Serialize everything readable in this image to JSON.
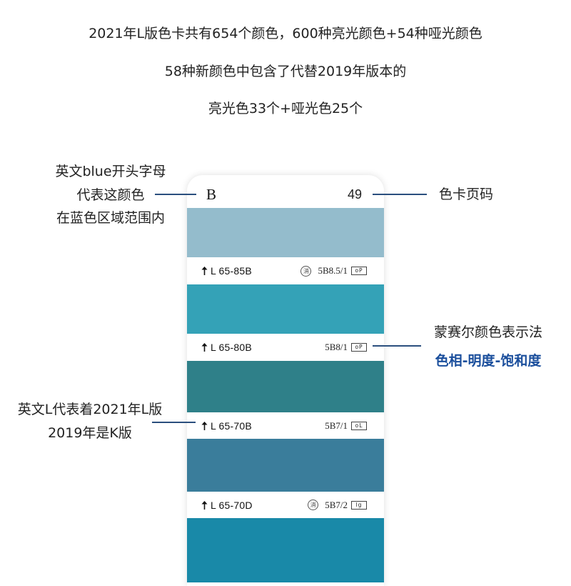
{
  "intro": {
    "line1": "2021年L版色卡共有654个颜色，600种亮光颜色+54种哑光颜色",
    "line2": "58种新颜色中包含了代替2019年版本的",
    "line3": "亮光色33个+哑光色25个"
  },
  "annotations": {
    "letter_note": [
      "英文blue开头字母",
      "代表这颜色",
      "在蓝色区域范围内"
    ],
    "page_note": "色卡页码",
    "munsell_note": "蒙赛尔颜色表示法",
    "munsell_detail": "色相-明度-饱和度",
    "edition_note": [
      "英文L代表着2021年L版",
      "2019年是K版"
    ]
  },
  "card": {
    "letter": "B",
    "page_number": "49",
    "swatches": [
      {
        "color": "#94BCCC",
        "code": "L 65-85B",
        "stamp": "消",
        "munsell": "5B8.5/1",
        "finish": "oP"
      },
      {
        "color": "#34A2B7",
        "code": "L 65-80B",
        "munsell": "5B8/1",
        "finish": "oP"
      },
      {
        "color": "#2F8089",
        "code": "L 65-70B",
        "munsell": "5B7/1",
        "finish": "oL"
      },
      {
        "color": "#3A7D9B",
        "code": "L 65-70D",
        "stamp": "消",
        "munsell": "5B7/2",
        "finish": "lg"
      },
      {
        "color": "#1989A8"
      }
    ]
  },
  "colors": {
    "connector_line": "#2B4F7E",
    "accent_text": "#1A4E9C",
    "body_text": "#222222"
  },
  "icons": {
    "row_marker": "up-arrow-icon",
    "stamp": "circled-character-icon"
  }
}
